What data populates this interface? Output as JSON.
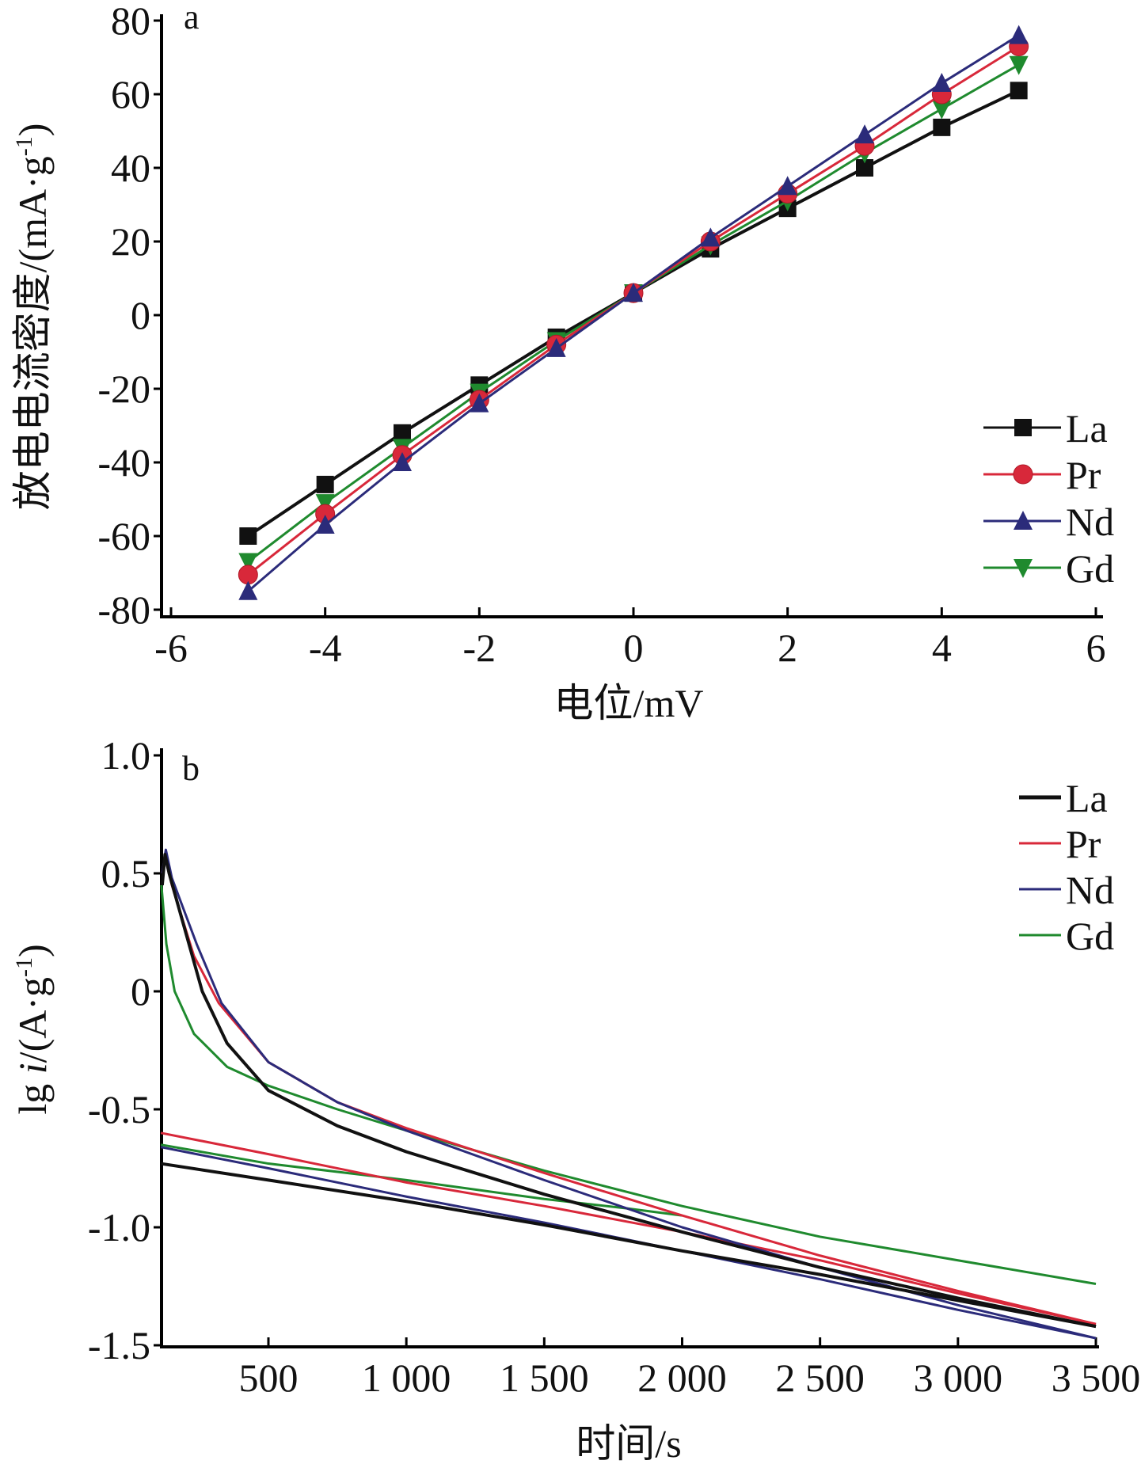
{
  "colors": {
    "La": "#111111",
    "Pr": "#d8283a",
    "Nd": "#2b2b7a",
    "Gd": "#1f8a2e"
  },
  "chart_data": [
    {
      "type": "line",
      "panel": "a",
      "xlabel": "电位/mV",
      "ylabel": "放电电流密度/(mA·g",
      "ylabel_sup": "-1",
      "ylabel_end": ")",
      "xlim": [
        -6,
        6
      ],
      "ylim": [
        -80,
        80
      ],
      "xticks": [
        "-6",
        "-4",
        "-2",
        "0",
        "2",
        "4",
        "6"
      ],
      "yticks": [
        "80",
        "60",
        "40",
        "20",
        "0",
        "-20",
        "-40",
        "-60",
        "-80"
      ],
      "legend_position": "lower-right",
      "x": [
        -5,
        -4,
        -3,
        -2,
        -1,
        0,
        1,
        2,
        3,
        4,
        5
      ],
      "series": [
        {
          "name": "La",
          "marker": "square",
          "values": [
            -60,
            -46,
            -32,
            -19,
            -6,
            6,
            18,
            29,
            40,
            51,
            61
          ]
        },
        {
          "name": "Pr",
          "marker": "circle",
          "values": [
            -70.5,
            -54,
            -38,
            -23,
            -8,
            6,
            20,
            33,
            46,
            60,
            73
          ]
        },
        {
          "name": "Nd",
          "marker": "triangle-up",
          "values": [
            -75,
            -57,
            -40,
            -24,
            -9,
            6,
            21,
            35,
            49,
            63,
            76
          ]
        },
        {
          "name": "Gd",
          "marker": "triangle-down",
          "values": [
            -67,
            -51,
            -36,
            -21,
            -7,
            6,
            19,
            31,
            44,
            56,
            68
          ]
        }
      ]
    },
    {
      "type": "line",
      "panel": "b",
      "xlabel": "时间/s",
      "ylabel_pre": "lg ",
      "ylabel_i": "i",
      "ylabel": "/(A·g",
      "ylabel_sup": "-1",
      "ylabel_end": ")",
      "xlim": [
        110,
        3500
      ],
      "ylim": [
        -1.5,
        1.0
      ],
      "xticks": [
        {
          "v": 500,
          "label": "500"
        },
        {
          "v": 1000,
          "label": "1 000"
        },
        {
          "v": 1500,
          "label": "1 500"
        },
        {
          "v": 2000,
          "label": "2 000"
        },
        {
          "v": 2500,
          "label": "2 500"
        },
        {
          "v": 3000,
          "label": "3 000"
        },
        {
          "v": 3500,
          "label": "3 500"
        }
      ],
      "yticks": [
        {
          "v": 1.0,
          "label": "1.0"
        },
        {
          "v": 0.5,
          "label": "0.5"
        },
        {
          "v": 0,
          "label": "0"
        },
        {
          "v": -0.5,
          "label": "-0.5"
        },
        {
          "v": -1.0,
          "label": "-1.0"
        },
        {
          "v": -1.5,
          "label": "-1.5"
        }
      ],
      "legend_position": "top-right",
      "series": [
        {
          "name": "La",
          "branches": [
            [
              [
                115,
                0.45
              ],
              [
                125,
                0.58
              ],
              [
                140,
                0.5
              ],
              [
                200,
                0.25
              ],
              [
                260,
                0.0
              ],
              [
                350,
                -0.22
              ],
              [
                500,
                -0.42
              ],
              [
                750,
                -0.57
              ],
              [
                1000,
                -0.68
              ],
              [
                1500,
                -0.86
              ],
              [
                2000,
                -1.02
              ],
              [
                2500,
                -1.17
              ],
              [
                3000,
                -1.3
              ],
              [
                3500,
                -1.42
              ]
            ],
            [
              [
                110,
                -0.73
              ],
              [
                500,
                -0.8
              ],
              [
                1000,
                -0.89
              ],
              [
                1500,
                -0.99
              ],
              [
                2000,
                -1.1
              ],
              [
                2500,
                -1.2
              ],
              [
                3000,
                -1.31
              ],
              [
                3500,
                -1.42
              ]
            ]
          ]
        },
        {
          "name": "Pr",
          "branches": [
            [
              [
                115,
                0.5
              ],
              [
                125,
                0.57
              ],
              [
                150,
                0.45
              ],
              [
                230,
                0.15
              ],
              [
                320,
                -0.05
              ],
              [
                500,
                -0.3
              ],
              [
                750,
                -0.47
              ],
              [
                1000,
                -0.58
              ],
              [
                1500,
                -0.77
              ],
              [
                2000,
                -0.95
              ],
              [
                2500,
                -1.12
              ],
              [
                3000,
                -1.27
              ],
              [
                3500,
                -1.41
              ]
            ],
            [
              [
                110,
                -0.6
              ],
              [
                500,
                -0.69
              ],
              [
                1000,
                -0.81
              ],
              [
                1500,
                -0.91
              ],
              [
                2000,
                -1.02
              ],
              [
                2500,
                -1.14
              ],
              [
                3000,
                -1.28
              ],
              [
                3500,
                -1.41
              ]
            ]
          ]
        },
        {
          "name": "Nd",
          "branches": [
            [
              [
                115,
                0.5
              ],
              [
                128,
                0.6
              ],
              [
                150,
                0.48
              ],
              [
                240,
                0.2
              ],
              [
                330,
                -0.05
              ],
              [
                500,
                -0.3
              ],
              [
                750,
                -0.47
              ],
              [
                1000,
                -0.59
              ],
              [
                1500,
                -0.8
              ],
              [
                2000,
                -1.0
              ],
              [
                2500,
                -1.17
              ],
              [
                3000,
                -1.33
              ],
              [
                3500,
                -1.47
              ]
            ],
            [
              [
                110,
                -0.66
              ],
              [
                500,
                -0.75
              ],
              [
                1000,
                -0.87
              ],
              [
                1500,
                -0.98
              ],
              [
                2000,
                -1.1
              ],
              [
                2500,
                -1.22
              ],
              [
                3000,
                -1.35
              ],
              [
                3500,
                -1.47
              ]
            ]
          ]
        },
        {
          "name": "Gd",
          "branches": [
            [
              [
                112,
                0.45
              ],
              [
                130,
                0.2
              ],
              [
                160,
                0.0
              ],
              [
                230,
                -0.18
              ],
              [
                350,
                -0.32
              ],
              [
                500,
                -0.4
              ],
              [
                750,
                -0.5
              ],
              [
                1000,
                -0.59
              ],
              [
                1500,
                -0.76
              ],
              [
                2000,
                -0.91
              ],
              [
                2500,
                -1.04
              ],
              [
                3000,
                -1.14
              ],
              [
                3500,
                -1.24
              ]
            ],
            [
              [
                110,
                -0.65
              ],
              [
                500,
                -0.73
              ],
              [
                1000,
                -0.8
              ],
              [
                1500,
                -0.88
              ],
              [
                1800,
                -0.92
              ],
              [
                2000,
                -0.95
              ]
            ]
          ]
        }
      ]
    }
  ]
}
